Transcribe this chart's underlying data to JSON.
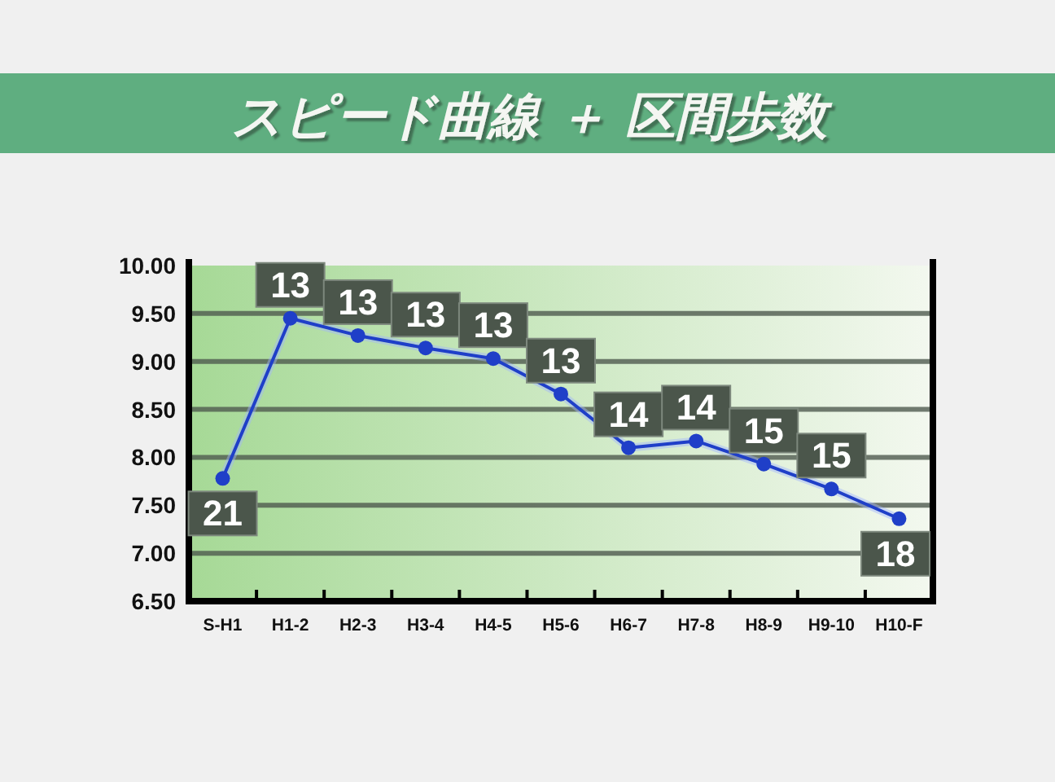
{
  "chart_data": {
    "type": "line",
    "title": "スピード曲線 ＋ 区間歩数",
    "categories": [
      "S-H1",
      "H1-2",
      "H2-3",
      "H3-4",
      "H4-5",
      "H5-6",
      "H6-7",
      "H7-8",
      "H8-9",
      "H9-10",
      "H10-F"
    ],
    "values": [
      7.78,
      9.45,
      9.27,
      9.14,
      9.03,
      8.66,
      8.1,
      8.17,
      7.93,
      7.67,
      7.36
    ],
    "annotations": [
      {
        "text": "21",
        "x": "S-H1",
        "y": 7.78
      },
      {
        "text": "13",
        "x": "H1-2",
        "y": 9.45
      },
      {
        "text": "13",
        "x": "H2-3",
        "y": 9.27
      },
      {
        "text": "13",
        "x": "H3-4",
        "y": 9.14
      },
      {
        "text": "13",
        "x": "H4-5",
        "y": 9.03
      },
      {
        "text": "13",
        "x": "H5-6",
        "y": 8.66
      },
      {
        "text": "14",
        "x": "H6-7",
        "y": 8.1
      },
      {
        "text": "14",
        "x": "H7-8",
        "y": 8.17
      },
      {
        "text": "15",
        "x": "H8-9",
        "y": 7.93
      },
      {
        "text": "15",
        "x": "H9-10",
        "y": 7.67
      },
      {
        "text": "18",
        "x": "H10-F",
        "y": 7.36
      }
    ],
    "color": "#1f3fc8",
    "marker": "circle",
    "line_style": "solid",
    "ylim": [
      6.5,
      10
    ],
    "yticks": [
      {
        "value": 6.5,
        "label": "6.50"
      },
      {
        "value": 7,
        "label": "7.00"
      },
      {
        "value": 7.5,
        "label": "7.50"
      },
      {
        "value": 8,
        "label": "8.00"
      },
      {
        "value": 8.5,
        "label": "8.50"
      },
      {
        "value": 9,
        "label": "9.00"
      },
      {
        "value": 9.5,
        "label": "9.50"
      },
      {
        "value": 10,
        "label": "10.00"
      }
    ],
    "grid": "y"
  }
}
